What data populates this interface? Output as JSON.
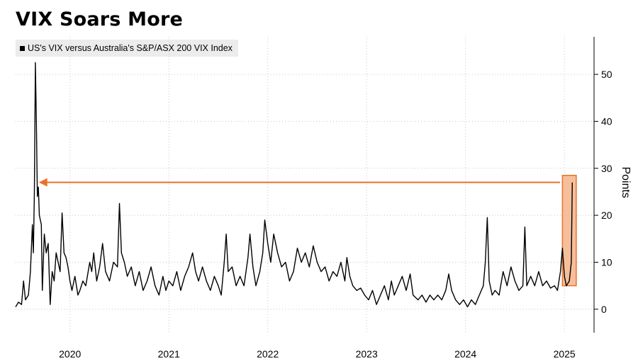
{
  "title": "VIX Soars More",
  "legend": {
    "label": "US's VIX versus Australia's S&P/ASX 200 VIX Index"
  },
  "chart_data": {
    "type": "line",
    "title": "VIX Soars More",
    "ylabel": "Points",
    "ylim": [
      -5,
      58
    ],
    "yticks": [
      0,
      10,
      20,
      30,
      40,
      50
    ],
    "xlim": [
      2019.45,
      2025.3
    ],
    "xticks": [
      {
        "label": "2020",
        "x": 2020.0
      },
      {
        "label": "2021",
        "x": 2021.0
      },
      {
        "label": "2022",
        "x": 2022.0
      },
      {
        "label": "2023",
        "x": 2023.0
      },
      {
        "label": "2024",
        "x": 2024.0
      },
      {
        "label": "2025",
        "x": 2025.0
      }
    ],
    "grid": true,
    "series": [
      {
        "name": "US's VIX versus Australia's S&P/ASX 200 VIX Index",
        "color": "#000000",
        "points": [
          [
            2019.45,
            0.5
          ],
          [
            2019.48,
            1.5
          ],
          [
            2019.51,
            1.0
          ],
          [
            2019.53,
            6.0
          ],
          [
            2019.55,
            2.0
          ],
          [
            2019.58,
            3.0
          ],
          [
            2019.6,
            8.0
          ],
          [
            2019.62,
            18.0
          ],
          [
            2019.63,
            12.0
          ],
          [
            2019.64,
            25.0
          ],
          [
            2019.65,
            52.5
          ],
          [
            2019.66,
            40.0
          ],
          [
            2019.67,
            24.0
          ],
          [
            2019.68,
            26.0
          ],
          [
            2019.69,
            20.0
          ],
          [
            2019.71,
            18.0
          ],
          [
            2019.72,
            4.0
          ],
          [
            2019.74,
            16.0
          ],
          [
            2019.76,
            12.0
          ],
          [
            2019.78,
            14.0
          ],
          [
            2019.8,
            1.0
          ],
          [
            2019.82,
            8.0
          ],
          [
            2019.84,
            6.0
          ],
          [
            2019.86,
            12.0
          ],
          [
            2019.88,
            10.0
          ],
          [
            2019.9,
            8.0
          ],
          [
            2019.92,
            20.5
          ],
          [
            2019.94,
            12.0
          ],
          [
            2019.96,
            11.0
          ],
          [
            2019.98,
            9.0
          ],
          [
            2020.0,
            6.0
          ],
          [
            2020.02,
            4.0
          ],
          [
            2020.05,
            7.0
          ],
          [
            2020.08,
            3.0
          ],
          [
            2020.1,
            4.0
          ],
          [
            2020.13,
            6.0
          ],
          [
            2020.16,
            5.0
          ],
          [
            2020.2,
            10.0
          ],
          [
            2020.22,
            8.0
          ],
          [
            2020.24,
            12.0
          ],
          [
            2020.27,
            6.0
          ],
          [
            2020.3,
            9.0
          ],
          [
            2020.33,
            14.0
          ],
          [
            2020.36,
            8.0
          ],
          [
            2020.4,
            6.0
          ],
          [
            2020.44,
            10.0
          ],
          [
            2020.48,
            9.0
          ],
          [
            2020.5,
            22.5
          ],
          [
            2020.52,
            12.0
          ],
          [
            2020.55,
            10.0
          ],
          [
            2020.58,
            7.0
          ],
          [
            2020.62,
            9.0
          ],
          [
            2020.66,
            5.0
          ],
          [
            2020.7,
            8.0
          ],
          [
            2020.74,
            4.0
          ],
          [
            2020.78,
            6.0
          ],
          [
            2020.82,
            9.0
          ],
          [
            2020.86,
            5.0
          ],
          [
            2020.9,
            3.0
          ],
          [
            2020.94,
            7.0
          ],
          [
            2020.97,
            4.0
          ],
          [
            2021.0,
            6.0
          ],
          [
            2021.04,
            5.0
          ],
          [
            2021.08,
            8.0
          ],
          [
            2021.12,
            4.0
          ],
          [
            2021.16,
            7.0
          ],
          [
            2021.2,
            9.0
          ],
          [
            2021.24,
            12.0
          ],
          [
            2021.27,
            8.0
          ],
          [
            2021.3,
            6.0
          ],
          [
            2021.34,
            9.0
          ],
          [
            2021.38,
            6.0
          ],
          [
            2021.42,
            4.0
          ],
          [
            2021.46,
            7.0
          ],
          [
            2021.5,
            5.0
          ],
          [
            2021.53,
            3.0
          ],
          [
            2021.56,
            10.0
          ],
          [
            2021.58,
            16.0
          ],
          [
            2021.6,
            8.0
          ],
          [
            2021.64,
            9.0
          ],
          [
            2021.68,
            5.0
          ],
          [
            2021.72,
            7.0
          ],
          [
            2021.76,
            5.0
          ],
          [
            2021.8,
            11.0
          ],
          [
            2021.82,
            16.0
          ],
          [
            2021.85,
            9.0
          ],
          [
            2021.88,
            5.0
          ],
          [
            2021.92,
            8.0
          ],
          [
            2021.95,
            12.0
          ],
          [
            2021.97,
            19.0
          ],
          [
            2022.0,
            14.0
          ],
          [
            2022.03,
            10.0
          ],
          [
            2022.06,
            16.0
          ],
          [
            2022.1,
            12.0
          ],
          [
            2022.14,
            9.0
          ],
          [
            2022.18,
            10.0
          ],
          [
            2022.22,
            6.0
          ],
          [
            2022.26,
            8.0
          ],
          [
            2022.3,
            13.0
          ],
          [
            2022.34,
            10.0
          ],
          [
            2022.38,
            12.0
          ],
          [
            2022.42,
            9.0
          ],
          [
            2022.46,
            13.5
          ],
          [
            2022.5,
            10.0
          ],
          [
            2022.54,
            8.0
          ],
          [
            2022.58,
            9.0
          ],
          [
            2022.62,
            6.0
          ],
          [
            2022.66,
            8.0
          ],
          [
            2022.7,
            7.0
          ],
          [
            2022.74,
            10.0
          ],
          [
            2022.78,
            6.0
          ],
          [
            2022.8,
            11.0
          ],
          [
            2022.83,
            7.0
          ],
          [
            2022.86,
            5.0
          ],
          [
            2022.9,
            4.0
          ],
          [
            2022.94,
            4.5
          ],
          [
            2022.98,
            3.0
          ],
          [
            2023.02,
            2.0
          ],
          [
            2023.06,
            4.0
          ],
          [
            2023.1,
            1.0
          ],
          [
            2023.14,
            3.0
          ],
          [
            2023.18,
            5.0
          ],
          [
            2023.22,
            2.0
          ],
          [
            2023.25,
            6.0
          ],
          [
            2023.28,
            3.0
          ],
          [
            2023.32,
            5.0
          ],
          [
            2023.36,
            7.0
          ],
          [
            2023.4,
            4.0
          ],
          [
            2023.44,
            7.5
          ],
          [
            2023.47,
            3.0
          ],
          [
            2023.52,
            2.0
          ],
          [
            2023.56,
            3.0
          ],
          [
            2023.6,
            1.5
          ],
          [
            2023.64,
            3.0
          ],
          [
            2023.68,
            2.0
          ],
          [
            2023.72,
            3.0
          ],
          [
            2023.76,
            2.0
          ],
          [
            2023.8,
            4.0
          ],
          [
            2023.83,
            7.5
          ],
          [
            2023.86,
            4.0
          ],
          [
            2023.9,
            2.0
          ],
          [
            2023.94,
            1.0
          ],
          [
            2023.98,
            2.0
          ],
          [
            2024.02,
            0.5
          ],
          [
            2024.06,
            2.0
          ],
          [
            2024.1,
            1.0
          ],
          [
            2024.14,
            3.0
          ],
          [
            2024.18,
            5.0
          ],
          [
            2024.2,
            10.0
          ],
          [
            2024.22,
            19.5
          ],
          [
            2024.24,
            6.0
          ],
          [
            2024.27,
            3.0
          ],
          [
            2024.3,
            4.0
          ],
          [
            2024.34,
            3.0
          ],
          [
            2024.38,
            8.0
          ],
          [
            2024.42,
            5.0
          ],
          [
            2024.46,
            9.0
          ],
          [
            2024.5,
            6.0
          ],
          [
            2024.54,
            4.0
          ],
          [
            2024.58,
            5.0
          ],
          [
            2024.6,
            17.5
          ],
          [
            2024.62,
            5.0
          ],
          [
            2024.66,
            7.0
          ],
          [
            2024.7,
            5.0
          ],
          [
            2024.74,
            8.0
          ],
          [
            2024.78,
            5.0
          ],
          [
            2024.82,
            6.0
          ],
          [
            2024.86,
            4.5
          ],
          [
            2024.9,
            5.0
          ],
          [
            2024.93,
            4.0
          ],
          [
            2024.96,
            8.0
          ],
          [
            2024.98,
            13.0
          ],
          [
            2025.0,
            7.0
          ],
          [
            2025.02,
            5.0
          ],
          [
            2025.05,
            6.0
          ],
          [
            2025.07,
            10.0
          ],
          [
            2025.08,
            27.0
          ]
        ]
      }
    ],
    "annotation": {
      "arrow": {
        "from_x": 2025.0,
        "to_x": 2019.67,
        "y": 27.0,
        "color": "#e8732a"
      },
      "highlight_box": {
        "x0": 2024.98,
        "x1": 2025.12,
        "y0": 5.0,
        "y1": 28.5,
        "fill": "#f4b48a",
        "stroke": "#e8732a"
      }
    }
  }
}
